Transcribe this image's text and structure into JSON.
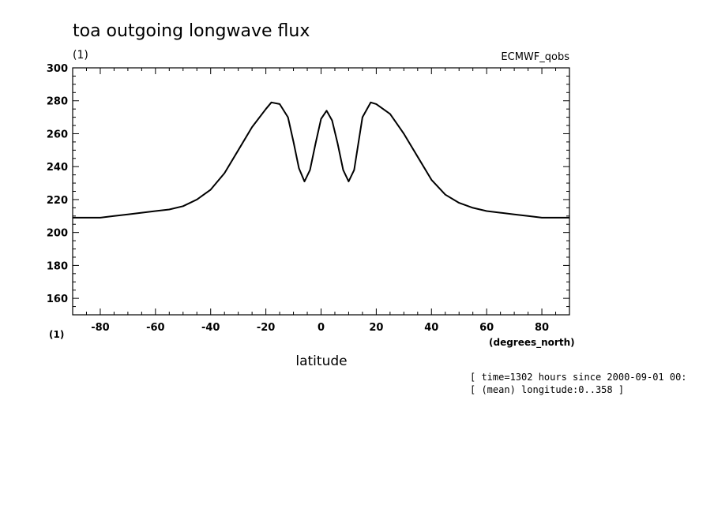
{
  "chart_data": {
    "type": "line",
    "title": "toa outgoing longwave flux",
    "yunits": "(1)",
    "dataset": "ECMWF_qobs",
    "xlabel": "latitude",
    "xunits": "(degrees_north)",
    "yunits_bottom": "(1)",
    "xlim": [
      -90,
      90
    ],
    "ylim": [
      150,
      300
    ],
    "xticks": [
      -80,
      -60,
      -40,
      -20,
      0,
      20,
      40,
      60,
      80
    ],
    "yticks": [
      160,
      180,
      200,
      220,
      240,
      260,
      280,
      300
    ],
    "info_lines": [
      "[ time=1302 hours since 2000-09-01 00:",
      "[ (mean) longitude:0..358 ]"
    ],
    "line_color": "#000000",
    "series": [
      {
        "x": [
          -90,
          -85,
          -80,
          -75,
          -70,
          -65,
          -60,
          -55,
          -50,
          -45,
          -40,
          -35,
          -30,
          -25,
          -20,
          -18,
          -15,
          -12,
          -10,
          -8,
          -6,
          -4,
          -2,
          0,
          2,
          4,
          6,
          8,
          10,
          12,
          15,
          18,
          20,
          25,
          30,
          35,
          40,
          45,
          50,
          55,
          60,
          65,
          70,
          75,
          80,
          85,
          90
        ],
        "y": [
          209,
          209,
          209,
          210,
          211,
          212,
          213,
          214,
          216,
          220,
          226,
          236,
          250,
          264,
          275,
          279,
          278,
          270,
          255,
          239,
          231,
          238,
          254,
          269,
          274,
          268,
          254,
          238,
          231,
          238,
          270,
          279,
          278,
          272,
          260,
          246,
          232,
          223,
          218,
          215,
          213,
          212,
          211,
          210,
          209,
          209,
          209
        ]
      }
    ]
  }
}
